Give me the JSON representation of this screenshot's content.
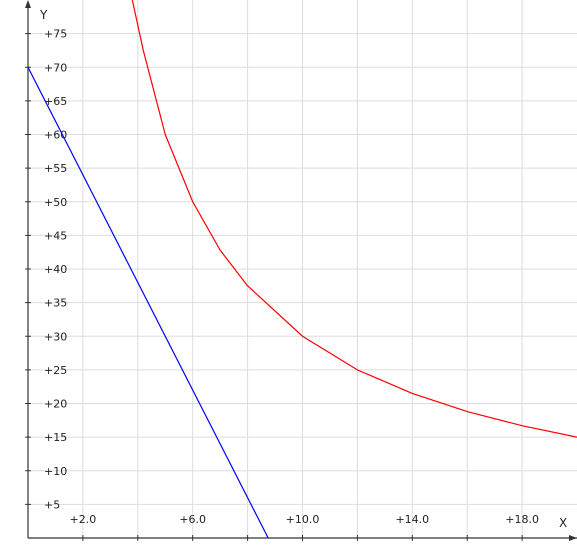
{
  "chart_data": {
    "type": "line",
    "xlabel": "X",
    "ylabel": "Y",
    "xlim": [
      0,
      20
    ],
    "ylim": [
      0,
      80
    ],
    "grid": true,
    "x_ticks": [
      2,
      4,
      6,
      8,
      10,
      12,
      14,
      16,
      18
    ],
    "x_tick_labels": [
      {
        "value": 2,
        "label": "+2.0"
      },
      {
        "value": 6,
        "label": "+6.0"
      },
      {
        "value": 10,
        "label": "+10.0"
      },
      {
        "value": 14,
        "label": "+14.0"
      },
      {
        "value": 18,
        "label": "+18.0"
      }
    ],
    "y_ticks": [
      5,
      10,
      15,
      20,
      25,
      30,
      35,
      40,
      45,
      50,
      55,
      60,
      65,
      70,
      75
    ],
    "y_tick_labels": [
      "+5",
      "+10",
      "+15",
      "+20",
      "+25",
      "+30",
      "+35",
      "+40",
      "+45",
      "+50",
      "+55",
      "+60",
      "+65",
      "+70",
      "+75"
    ],
    "series": [
      {
        "color": "#ff0000",
        "points": [
          [
            3.8,
            80
          ],
          [
            4.2,
            72.5
          ],
          [
            5.0,
            60
          ],
          [
            6.0,
            50
          ],
          [
            7.0,
            42.8
          ],
          [
            8.0,
            37.5
          ],
          [
            10.0,
            30
          ],
          [
            12.0,
            25
          ],
          [
            14.0,
            21.5
          ],
          [
            16.0,
            18.8
          ],
          [
            18.0,
            16.7
          ],
          [
            20.0,
            15
          ]
        ]
      },
      {
        "color": "#0000ff",
        "points": [
          [
            0,
            70
          ],
          [
            8.75,
            0
          ]
        ]
      }
    ]
  }
}
